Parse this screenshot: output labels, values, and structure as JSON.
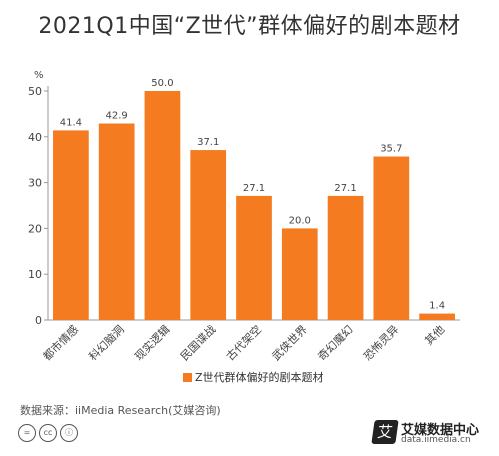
{
  "chart_data": {
    "type": "bar",
    "title": "2021Q1中国“Z世代”群体偏好的剧本题材",
    "ylabel": "%",
    "ylim": [
      0,
      50
    ],
    "yticks": [
      0,
      10,
      20,
      30,
      40,
      50
    ],
    "categories": [
      "都市情感",
      "科幻脑洞",
      "现实逻辑",
      "民国谍战",
      "古代架空",
      "武侠世界",
      "奇幻魔幻",
      "恐怖灵异",
      "其他"
    ],
    "series": [
      {
        "name": "Z世代群体偏好的剧本题材",
        "values": [
          41.4,
          42.9,
          50.0,
          37.1,
          27.1,
          20.0,
          27.1,
          35.7,
          1.4
        ],
        "labels": [
          "41.4",
          "42.9",
          "50.0",
          "37.1",
          "27.1",
          "20.0",
          "27.1",
          "35.7",
          "1.4"
        ]
      }
    ],
    "legend": "bottom",
    "grid": false,
    "color": "#f47b20"
  },
  "footer": {
    "source": "数据来源：iiMedia Research(艾媒咨询)",
    "cc_icons": [
      "equals-icon",
      "cc-icon",
      "by-icon"
    ],
    "brand_name": "艾媒数据中心",
    "brand_badge": "艾",
    "brand_url": "data.iimedia.cn"
  }
}
